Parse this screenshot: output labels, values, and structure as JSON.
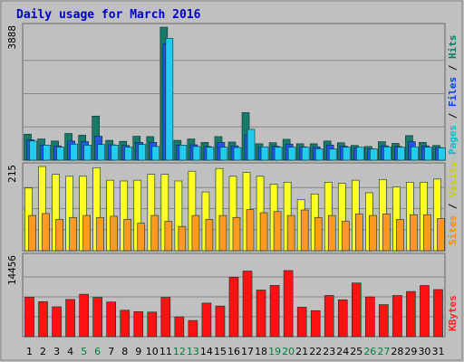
{
  "chart_data": {
    "type": "bar",
    "title": "Daily usage for March 2016",
    "categories": [
      "1",
      "2",
      "3",
      "4",
      "5",
      "6",
      "7",
      "8",
      "9",
      "10",
      "11",
      "12",
      "13",
      "14",
      "15",
      "16",
      "17",
      "18",
      "19",
      "20",
      "21",
      "22",
      "23",
      "24",
      "25",
      "26",
      "27",
      "28",
      "29",
      "30",
      "31"
    ],
    "weekend_days": [
      "5",
      "6",
      "12",
      "13",
      "19",
      "20",
      "26",
      "27"
    ],
    "panels": [
      {
        "name": "hits-files-pages",
        "ymax_label": "3888",
        "ymax": 3888,
        "right_labels": [
          {
            "text": "Pages",
            "color": "#00c0d0"
          },
          {
            "text": " / ",
            "color": "#000000"
          },
          {
            "text": "Files",
            "color": "#0040ff"
          },
          {
            "text": " / ",
            "color": "#000000"
          },
          {
            "text": "Hits",
            "color": "#008060"
          }
        ],
        "series": [
          {
            "name": "Hits",
            "color": "#1a7a6a",
            "values": [
              760,
              620,
              560,
              780,
              730,
              1290,
              580,
              550,
              700,
              690,
              3888,
              580,
              620,
              520,
              690,
              530,
              1390,
              480,
              510,
              610,
              480,
              480,
              560,
              510,
              430,
              400,
              540,
              490,
              720,
              520,
              430
            ]
          },
          {
            "name": "Files",
            "color": "#2255ee",
            "values": [
              600,
              440,
              420,
              560,
              540,
              700,
              450,
              430,
              520,
              520,
              3400,
              440,
              450,
              400,
              520,
              420,
              740,
              380,
              410,
              470,
              390,
              390,
              440,
              410,
              360,
              330,
              420,
              400,
              540,
              420,
              370
            ]
          },
          {
            "name": "Pages",
            "color": "#22ccee",
            "values": [
              560,
              440,
              380,
              470,
              440,
              460,
              440,
              380,
              460,
              400,
              3560,
              440,
              400,
              380,
              380,
              370,
              900,
              390,
              380,
              380,
              380,
              330,
              330,
              380,
              380,
              330,
              390,
              380,
              390,
              380,
              360
            ]
          }
        ]
      },
      {
        "name": "visits-sites",
        "ymax_label": "215",
        "ymax": 215,
        "right_labels": [
          {
            "text": "Sites",
            "color": "#ff8800"
          },
          {
            "text": " / ",
            "color": "#000000"
          },
          {
            "text": "Visits",
            "color": "#cccc00"
          }
        ],
        "series": [
          {
            "name": "Visits",
            "color": "#ffff22",
            "values": [
              160,
              215,
              195,
              190,
              190,
              212,
              180,
              178,
              180,
              195,
              195,
              178,
              203,
              150,
              210,
              190,
              200,
              190,
              170,
              175,
              130,
              145,
              175,
              172,
              180,
              148,
              182,
              163,
              175,
              175,
              183
            ]
          },
          {
            "name": "Sites",
            "color": "#ff9922",
            "values": [
              90,
              95,
              80,
              85,
              90,
              85,
              88,
              80,
              70,
              90,
              75,
              62,
              90,
              80,
              90,
              85,
              105,
              97,
              100,
              90,
              104,
              85,
              90,
              75,
              94,
              90,
              94,
              80,
              92,
              92,
              82
            ]
          }
        ]
      },
      {
        "name": "kbytes",
        "ymax_label": "14456",
        "ymax": 14456,
        "right_labels": [
          {
            "text": "KBytes",
            "color": "#ff2222"
          }
        ],
        "series": [
          {
            "name": "KBytes",
            "color": "#ff1111",
            "values": [
              7150,
              6350,
              5420,
              6750,
              7700,
              7120,
              6300,
              4800,
              4540,
              4470,
              7130,
              3600,
              2940,
              6090,
              5560,
              10800,
              11910,
              8460,
              9300,
              12000,
              5350,
              4720,
              7480,
              6690,
              9740,
              7220,
              5820,
              7470,
              8200,
              9280,
              8550
            ]
          }
        ]
      }
    ]
  },
  "colors": {
    "weekday_label": "#000000",
    "weekend_label": "#008040",
    "title": "#0000cc",
    "plot_bg": "#c0c0c0",
    "grid": "#888888",
    "border": "#666666"
  }
}
